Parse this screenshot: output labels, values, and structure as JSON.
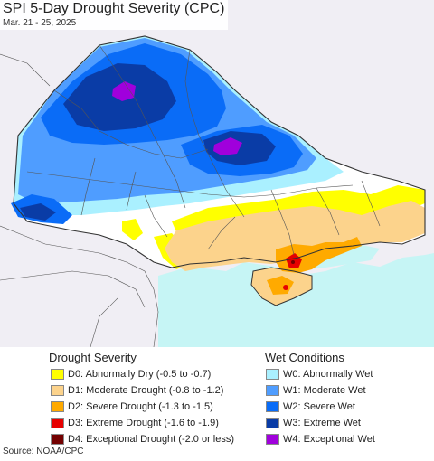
{
  "title": "SPI 5-Day Drought Severity (CPC)",
  "date_range": "Mar. 21 - 25, 2025",
  "drought_legend": {
    "title": "Drought Severity",
    "items": [
      {
        "label": "D0: Abnormally Dry (-0.5 to -0.7)",
        "color": "#ffff00"
      },
      {
        "label": "D1: Moderate Drought (-0.8 to -1.2)",
        "color": "#fcd38c"
      },
      {
        "label": "D2: Severe Drought (-1.3 to -1.5)",
        "color": "#ffaa00"
      },
      {
        "label": "D3: Extreme Drought (-1.6 to -1.9)",
        "color": "#e60000"
      },
      {
        "label": "D4: Exceptional Drought (-2.0 or less)",
        "color": "#730000"
      }
    ]
  },
  "wet_legend": {
    "title": "Wet Conditions",
    "items": [
      {
        "label": "W0: Abnormally Wet",
        "color": "#aaf0ff"
      },
      {
        "label": "W1: Moderate Wet",
        "color": "#4f9dff"
      },
      {
        "label": "W2: Severe Wet",
        "color": "#0a6cf7"
      },
      {
        "label": "W3: Extreme Wet",
        "color": "#0a3ca6"
      },
      {
        "label": "W4: Exceptional Wet",
        "color": "#a000dc"
      }
    ]
  },
  "source": "Source: NOAA/CPC"
}
